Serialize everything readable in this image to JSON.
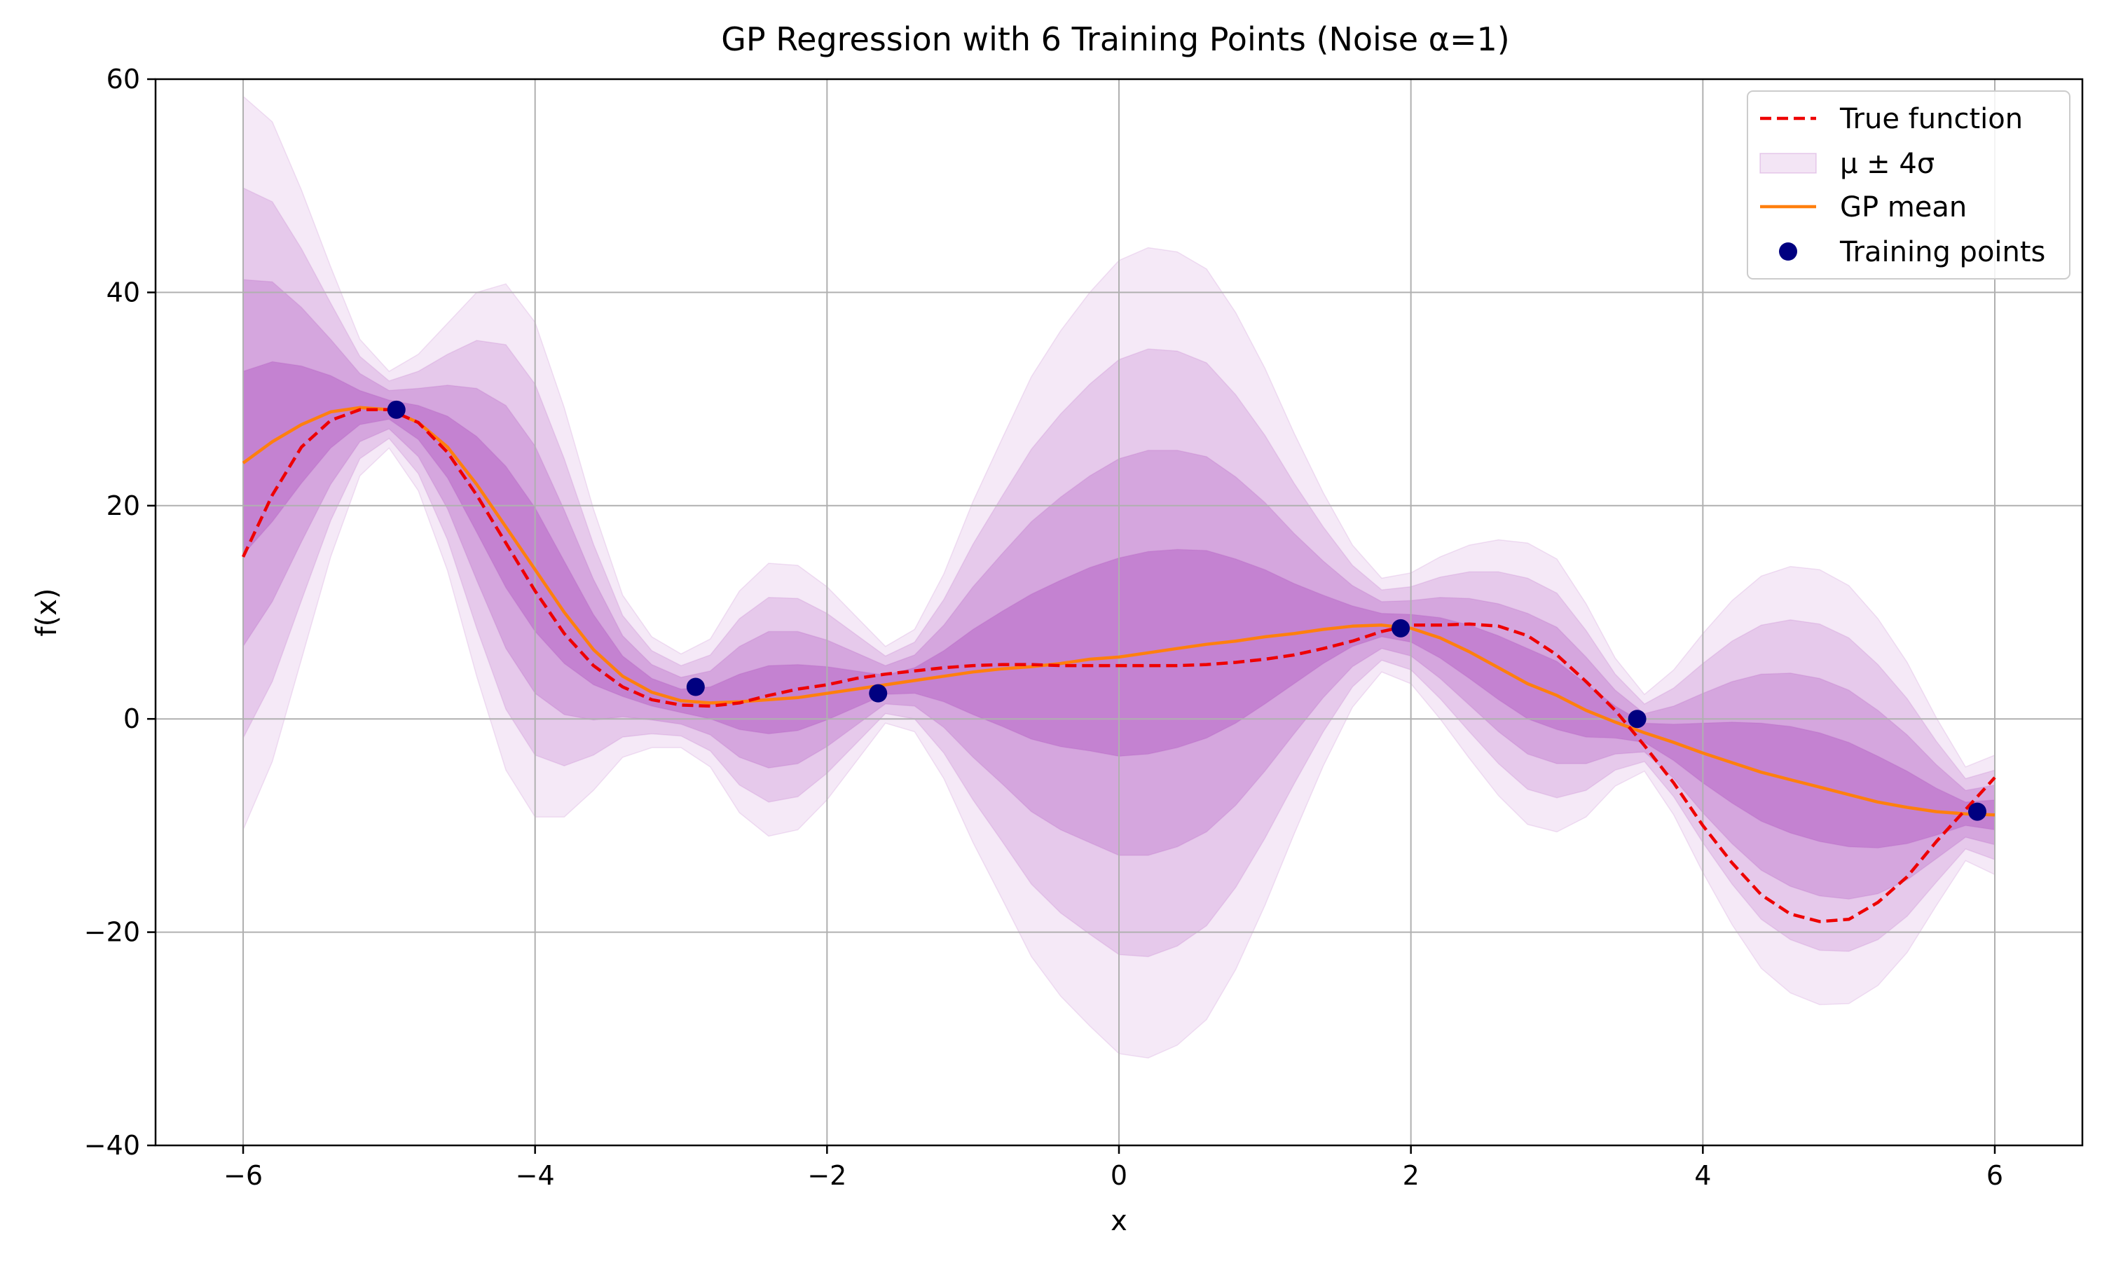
{
  "chart_data": {
    "type": "line",
    "title": "GP Regression with 6 Training Points (Noise α=1)",
    "xlabel": "x",
    "ylabel": "f(x)",
    "xlim": [
      -6.6,
      6.6
    ],
    "ylim": [
      -40,
      60
    ],
    "x_ticks": [
      -6,
      -4,
      -2,
      0,
      2,
      4,
      6
    ],
    "x_tick_labels": [
      "−6",
      "−4",
      "−2",
      "0",
      "2",
      "4",
      "6"
    ],
    "y_ticks": [
      -40,
      -20,
      0,
      20,
      40,
      60
    ],
    "y_tick_labels": [
      "−40",
      "−20",
      "0",
      "20",
      "40",
      "60"
    ],
    "grid": true,
    "legend_position": "top-right",
    "colors": {
      "true_function": "#ee0000",
      "gp_mean": "#ff7f0e",
      "band": "#9c27b0",
      "points": "#000080",
      "grid": "#b0b0b0"
    },
    "legend": [
      {
        "label": "True function",
        "kind": "dashed-line"
      },
      {
        "label": "μ ± 4σ",
        "kind": "patch"
      },
      {
        "label": "GP mean",
        "kind": "line"
      },
      {
        "label": "Training points",
        "kind": "marker"
      }
    ],
    "series": [
      {
        "name": "True function",
        "style": "dashed",
        "x": [
          -6,
          -5.8,
          -5.6,
          -5.4,
          -5.2,
          -5.0,
          -4.8,
          -4.6,
          -4.4,
          -4.2,
          -4.0,
          -3.8,
          -3.6,
          -3.4,
          -3.2,
          -3.0,
          -2.8,
          -2.6,
          -2.4,
          -2.2,
          -2.0,
          -1.8,
          -1.6,
          -1.4,
          -1.2,
          -1.0,
          -0.8,
          -0.6,
          -0.4,
          -0.2,
          0,
          0.2,
          0.4,
          0.6,
          0.8,
          1.0,
          1.2,
          1.4,
          1.6,
          1.8,
          2.0,
          2.2,
          2.4,
          2.6,
          2.8,
          3.0,
          3.2,
          3.4,
          3.6,
          3.8,
          4.0,
          4.2,
          4.4,
          4.6,
          4.8,
          5.0,
          5.2,
          5.4,
          5.6,
          5.8,
          6.0
        ],
        "y": [
          15.2,
          21,
          25.5,
          28,
          29,
          29,
          27.8,
          25,
          21,
          16.5,
          12,
          8,
          5,
          3,
          1.8,
          1.3,
          1.2,
          1.5,
          2.2,
          2.8,
          3.2,
          3.8,
          4.2,
          4.5,
          4.8,
          5.0,
          5.1,
          5.1,
          5.0,
          5.0,
          5.0,
          5.0,
          5.0,
          5.1,
          5.3,
          5.6,
          6.0,
          6.6,
          7.3,
          8.2,
          8.8,
          8.8,
          8.9,
          8.7,
          7.8,
          6.0,
          3.5,
          0.8,
          -2.5,
          -6,
          -10,
          -13.5,
          -16.5,
          -18.3,
          -19,
          -18.8,
          -17.2,
          -14.8,
          -11.5,
          -8.5,
          -5.5
        ]
      },
      {
        "name": "GP mean",
        "style": "solid",
        "x": [
          -6,
          -5.8,
          -5.6,
          -5.4,
          -5.2,
          -5.0,
          -4.8,
          -4.6,
          -4.4,
          -4.2,
          -4.0,
          -3.8,
          -3.6,
          -3.4,
          -3.2,
          -3.0,
          -2.8,
          -2.6,
          -2.4,
          -2.2,
          -2.0,
          -1.8,
          -1.6,
          -1.4,
          -1.2,
          -1.0,
          -0.8,
          -0.6,
          -0.4,
          -0.2,
          0,
          0.2,
          0.4,
          0.6,
          0.8,
          1.0,
          1.2,
          1.4,
          1.6,
          1.8,
          2.0,
          2.2,
          2.4,
          2.6,
          2.8,
          3.0,
          3.2,
          3.4,
          3.6,
          3.8,
          4.0,
          4.2,
          4.4,
          4.6,
          4.8,
          5.0,
          5.2,
          5.4,
          5.6,
          5.8,
          6.0
        ],
        "y": [
          24,
          26,
          27.6,
          28.8,
          29.2,
          29,
          27.8,
          25.5,
          22,
          18,
          14,
          10,
          6.5,
          4,
          2.5,
          1.7,
          1.5,
          1.6,
          1.8,
          2.0,
          2.4,
          2.8,
          3.2,
          3.6,
          4.0,
          4.4,
          4.7,
          4.9,
          5.2,
          5.6,
          5.8,
          6.2,
          6.6,
          7.0,
          7.3,
          7.7,
          8.0,
          8.4,
          8.7,
          8.8,
          8.5,
          7.6,
          6.3,
          4.8,
          3.3,
          2.2,
          0.8,
          -0.3,
          -1.3,
          -2.2,
          -3.2,
          -4.1,
          -5.0,
          -5.7,
          -6.4,
          -7.1,
          -7.8,
          -8.3,
          -8.7,
          -8.9,
          -9.0
        ]
      }
    ],
    "uncertainty_bands": {
      "label": "μ ± 4σ",
      "x": [
        -6,
        -5.8,
        -5.6,
        -5.4,
        -5.2,
        -5.0,
        -4.8,
        -4.6,
        -4.4,
        -4.2,
        -4.0,
        -3.8,
        -3.6,
        -3.4,
        -3.2,
        -3.0,
        -2.8,
        -2.6,
        -2.4,
        -2.2,
        -2.0,
        -1.8,
        -1.6,
        -1.4,
        -1.2,
        -1.0,
        -0.8,
        -0.6,
        -0.4,
        -0.2,
        0,
        0.2,
        0.4,
        0.6,
        0.8,
        1.0,
        1.2,
        1.4,
        1.6,
        1.8,
        2.0,
        2.2,
        2.4,
        2.6,
        2.8,
        3.0,
        3.2,
        3.4,
        3.6,
        3.8,
        4.0,
        4.2,
        4.4,
        4.6,
        4.8,
        5.0,
        5.2,
        5.4,
        5.6,
        5.8,
        6.0
      ],
      "sigma": [
        8.6,
        7.5,
        5.5,
        3.4,
        1.6,
        0.9,
        1.6,
        2.9,
        4.5,
        5.7,
        5.8,
        4.8,
        3.3,
        1.9,
        1.3,
        1.1,
        1.5,
        2.6,
        3.2,
        3.1,
        2.5,
        1.7,
        0.9,
        1.2,
        2.4,
        4.0,
        5.4,
        6.8,
        7.8,
        8.6,
        9.3,
        9.5,
        9.3,
        8.8,
        7.7,
        6.3,
        4.7,
        3.2,
        1.9,
        1.1,
        1.3,
        1.9,
        2.5,
        3.0,
        3.3,
        3.2,
        2.5,
        1.5,
        0.9,
        1.7,
        2.8,
        3.8,
        4.6,
        5.0,
        5.1,
        4.9,
        4.3,
        3.4,
        2.2,
        1.1,
        1.4
      ],
      "multipliers": [
        1,
        2,
        3,
        4
      ],
      "opacities": [
        0.28,
        0.22,
        0.16,
        0.1
      ]
    },
    "training_points": {
      "name": "Training points",
      "x": [
        -4.95,
        -2.9,
        -1.65,
        1.93,
        3.55,
        5.88
      ],
      "y": [
        29,
        3.0,
        2.4,
        8.5,
        0.0,
        -8.7
      ]
    }
  }
}
